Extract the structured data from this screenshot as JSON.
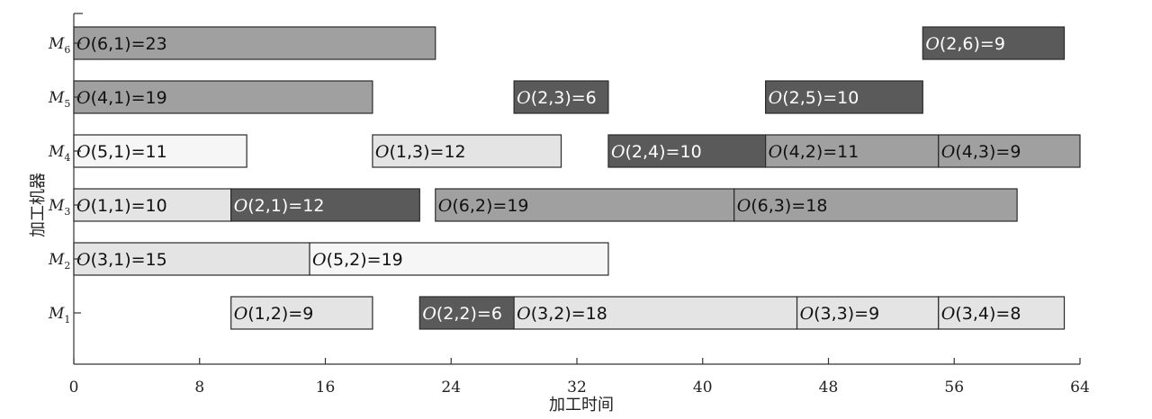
{
  "chart_data": {
    "type": "gantt",
    "xlabel": "加工时间",
    "ylabel": "加工机器",
    "xlim": [
      0,
      64
    ],
    "xticks": [
      0,
      8,
      16,
      24,
      32,
      40,
      48,
      56,
      64
    ],
    "machines": [
      {
        "letter": "M",
        "sub": "1"
      },
      {
        "letter": "M",
        "sub": "2"
      },
      {
        "letter": "M",
        "sub": "3"
      },
      {
        "letter": "M",
        "sub": "4"
      },
      {
        "letter": "M",
        "sub": "5"
      },
      {
        "letter": "M",
        "sub": "6"
      }
    ],
    "operations": [
      {
        "machine": 6,
        "start": 0,
        "end": 23,
        "label": "(6,1)=23",
        "job": 6
      },
      {
        "machine": 6,
        "start": 54,
        "end": 63,
        "label": "(2,6)=9",
        "job": 2
      },
      {
        "machine": 5,
        "start": 0,
        "end": 19,
        "label": "(4,1)=19",
        "job": 4
      },
      {
        "machine": 5,
        "start": 28,
        "end": 34,
        "label": "(2,3)=6",
        "job": 2
      },
      {
        "machine": 5,
        "start": 44,
        "end": 54,
        "label": "(2,5)=10",
        "job": 2
      },
      {
        "machine": 4,
        "start": 0,
        "end": 11,
        "label": "(5,1)=11",
        "job": 5
      },
      {
        "machine": 4,
        "start": 19,
        "end": 31,
        "label": "(1,3)=12",
        "job": 1
      },
      {
        "machine": 4,
        "start": 34,
        "end": 44,
        "label": "(2,4)=10",
        "job": 2
      },
      {
        "machine": 4,
        "start": 44,
        "end": 55,
        "label": "(4,2)=11",
        "job": 4
      },
      {
        "machine": 4,
        "start": 55,
        "end": 64,
        "label": "(4,3)=9",
        "job": 4
      },
      {
        "machine": 3,
        "start": 0,
        "end": 10,
        "label": "(1,1)=10",
        "job": 1
      },
      {
        "machine": 3,
        "start": 10,
        "end": 22,
        "label": "(2,1)=12",
        "job": 2
      },
      {
        "machine": 3,
        "start": 23,
        "end": 42,
        "label": "(6,2)=19",
        "job": 6
      },
      {
        "machine": 3,
        "start": 42,
        "end": 60,
        "label": "(6,3)=18",
        "job": 6
      },
      {
        "machine": 2,
        "start": 0,
        "end": 15,
        "label": "(3,1)=15",
        "job": 3
      },
      {
        "machine": 2,
        "start": 15,
        "end": 34,
        "label": "(5,2)=19",
        "job": 5
      },
      {
        "machine": 1,
        "start": 10,
        "end": 19,
        "label": "(1,2)=9",
        "job": 1
      },
      {
        "machine": 1,
        "start": 22,
        "end": 28,
        "label": "(2,2)=6",
        "job": 2
      },
      {
        "machine": 1,
        "start": 28,
        "end": 46,
        "label": "(3,2)=18",
        "job": 3
      },
      {
        "machine": 1,
        "start": 46,
        "end": 55,
        "label": "(3,3)=9",
        "job": 3
      },
      {
        "machine": 1,
        "start": 55,
        "end": 63,
        "label": "(3,4)=8",
        "job": 3
      }
    ],
    "op_letter": "O",
    "job_colors": {
      "1": "#e4e4e4",
      "2": "#5a5a5a",
      "3": "#e4e4e4",
      "4": "#a0a0a0",
      "5": "#f6f6f6",
      "6": "#a0a0a0"
    },
    "job_text_colors": {
      "1": "#111111",
      "2": "#ffffff",
      "3": "#111111",
      "4": "#111111",
      "5": "#111111",
      "6": "#111111"
    }
  }
}
